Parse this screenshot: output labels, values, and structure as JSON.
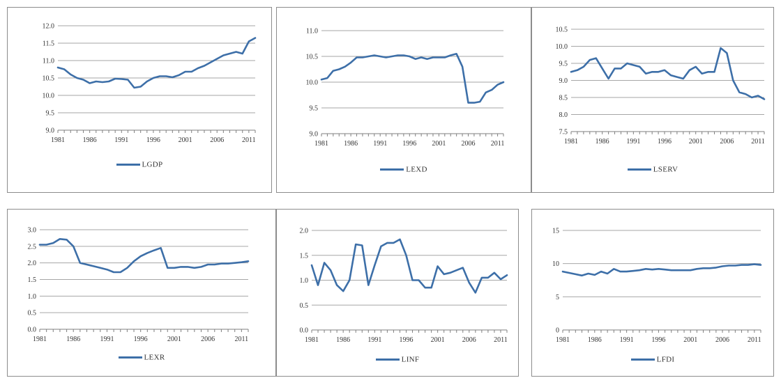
{
  "line_color": "#3d6fa8",
  "grid_color": "#a6a6a6",
  "chart_data": [
    {
      "type": "line",
      "title": "",
      "xlabel": "",
      "ylabel": "",
      "legend": "bottom",
      "grid": true,
      "ylim": [
        9.0,
        12.0
      ],
      "yticks": [
        "9.0",
        "9.5",
        "10.0",
        "10.5",
        "11.0",
        "11.5",
        "12.0"
      ],
      "xticks": [
        "1981",
        "1986",
        "1991",
        "1996",
        "2001",
        "2006",
        "2011"
      ],
      "x": [
        1981,
        1982,
        1983,
        1984,
        1985,
        1986,
        1987,
        1988,
        1989,
        1990,
        1991,
        1992,
        1993,
        1994,
        1995,
        1996,
        1997,
        1998,
        1999,
        2000,
        2001,
        2002,
        2003,
        2004,
        2005,
        2006,
        2007,
        2008,
        2009,
        2010,
        2011,
        2012
      ],
      "series": [
        {
          "name": "LGDP",
          "values": [
            10.8,
            10.75,
            10.6,
            10.5,
            10.45,
            10.35,
            10.4,
            10.38,
            10.4,
            10.48,
            10.47,
            10.45,
            10.22,
            10.25,
            10.4,
            10.5,
            10.55,
            10.55,
            10.52,
            10.58,
            10.68,
            10.68,
            10.78,
            10.85,
            10.95,
            11.05,
            11.15,
            11.2,
            11.25,
            11.2,
            11.55,
            11.65
          ]
        }
      ]
    },
    {
      "type": "line",
      "title": "",
      "xlabel": "",
      "ylabel": "",
      "legend": "bottom",
      "grid": true,
      "ylim": [
        9.0,
        11.0
      ],
      "yticks": [
        "9.0",
        "9.5",
        "10.0",
        "10.5",
        "11.0"
      ],
      "xticks": [
        "1981",
        "1986",
        "1991",
        "1996",
        "2001",
        "2006",
        "2011"
      ],
      "x": [
        1981,
        1982,
        1983,
        1984,
        1985,
        1986,
        1987,
        1988,
        1989,
        1990,
        1991,
        1992,
        1993,
        1994,
        1995,
        1996,
        1997,
        1998,
        1999,
        2000,
        2001,
        2002,
        2003,
        2004,
        2005,
        2006,
        2007,
        2008,
        2009,
        2010,
        2011,
        2012
      ],
      "series": [
        {
          "name": "LEXD",
          "values": [
            10.05,
            10.08,
            10.22,
            10.25,
            10.3,
            10.38,
            10.48,
            10.48,
            10.5,
            10.52,
            10.5,
            10.48,
            10.5,
            10.52,
            10.52,
            10.5,
            10.45,
            10.48,
            10.45,
            10.48,
            10.48,
            10.48,
            10.52,
            10.55,
            10.3,
            9.6,
            9.6,
            9.62,
            9.8,
            9.85,
            9.95,
            10.0
          ]
        }
      ]
    },
    {
      "type": "line",
      "title": "",
      "xlabel": "",
      "ylabel": "",
      "legend": "bottom",
      "grid": true,
      "ylim": [
        7.5,
        10.5
      ],
      "yticks": [
        "7.5",
        "8.0",
        "8.5",
        "9.0",
        "9.5",
        "10.0",
        "10.5"
      ],
      "xticks": [
        "1981",
        "1986",
        "1991",
        "1996",
        "2001",
        "2006",
        "2011"
      ],
      "x": [
        1981,
        1982,
        1983,
        1984,
        1985,
        1986,
        1987,
        1988,
        1989,
        1990,
        1991,
        1992,
        1993,
        1994,
        1995,
        1996,
        1997,
        1998,
        1999,
        2000,
        2001,
        2002,
        2003,
        2004,
        2005,
        2006,
        2007,
        2008,
        2009,
        2010,
        2011,
        2012
      ],
      "series": [
        {
          "name": "LSERV",
          "values": [
            9.25,
            9.3,
            9.4,
            9.6,
            9.65,
            9.35,
            9.05,
            9.35,
            9.35,
            9.5,
            9.45,
            9.4,
            9.2,
            9.25,
            9.25,
            9.3,
            9.15,
            9.1,
            9.05,
            9.3,
            9.4,
            9.2,
            9.25,
            9.25,
            9.95,
            9.8,
            9.0,
            8.65,
            8.6,
            8.5,
            8.55,
            8.45
          ]
        }
      ]
    },
    {
      "type": "line",
      "title": "",
      "xlabel": "",
      "ylabel": "",
      "legend": "bottom",
      "grid": true,
      "ylim": [
        0.0,
        3.0
      ],
      "yticks": [
        "0.0",
        "0.5",
        "1.0",
        "1.5",
        "2.0",
        "2.5",
        "3.0"
      ],
      "xticks": [
        "1981",
        "1986",
        "1991",
        "1996",
        "2001",
        "2006",
        "2011"
      ],
      "x": [
        1981,
        1982,
        1983,
        1984,
        1985,
        1986,
        1987,
        1988,
        1989,
        1990,
        1991,
        1992,
        1993,
        1994,
        1995,
        1996,
        1997,
        1998,
        1999,
        2000,
        2001,
        2002,
        2003,
        2004,
        2005,
        2006,
        2007,
        2008,
        2009,
        2010,
        2011,
        2012
      ],
      "series": [
        {
          "name": "LEXR",
          "values": [
            2.55,
            2.55,
            2.6,
            2.72,
            2.7,
            2.5,
            2.0,
            1.95,
            1.9,
            1.85,
            1.8,
            1.72,
            1.72,
            1.85,
            2.05,
            2.2,
            2.3,
            2.38,
            2.45,
            1.85,
            1.85,
            1.88,
            1.88,
            1.85,
            1.88,
            1.95,
            1.95,
            1.98,
            1.98,
            2.0,
            2.02,
            2.05
          ]
        }
      ]
    },
    {
      "type": "line",
      "title": "",
      "xlabel": "",
      "ylabel": "",
      "legend": "bottom",
      "grid": true,
      "ylim": [
        0.0,
        2.0
      ],
      "yticks": [
        "0.0",
        "0.5",
        "1.0",
        "1.5",
        "2.0"
      ],
      "xticks": [
        "1981",
        "1986",
        "1991",
        "1996",
        "2001",
        "2006",
        "2011"
      ],
      "x": [
        1981,
        1982,
        1983,
        1984,
        1985,
        1986,
        1987,
        1988,
        1989,
        1990,
        1991,
        1992,
        1993,
        1994,
        1995,
        1996,
        1997,
        1998,
        1999,
        2000,
        2001,
        2002,
        2003,
        2004,
        2005,
        2006,
        2007,
        2008,
        2009,
        2010,
        2011,
        2012
      ],
      "series": [
        {
          "name": "LINF",
          "values": [
            1.3,
            0.9,
            1.35,
            1.2,
            0.9,
            0.78,
            1.0,
            1.72,
            1.7,
            0.9,
            1.3,
            1.68,
            1.75,
            1.75,
            1.82,
            1.5,
            1.0,
            1.0,
            0.85,
            0.85,
            1.28,
            1.12,
            1.15,
            1.2,
            1.25,
            0.95,
            0.75,
            1.05,
            1.05,
            1.15,
            1.02,
            1.1
          ]
        }
      ]
    },
    {
      "type": "line",
      "title": "",
      "xlabel": "",
      "ylabel": "",
      "legend": "bottom",
      "grid": true,
      "ylim": [
        0,
        15
      ],
      "yticks": [
        "0",
        "5",
        "10",
        "15"
      ],
      "xticks": [
        "1981",
        "1986",
        "1991",
        "1996",
        "2001",
        "2006",
        "2011"
      ],
      "x": [
        1981,
        1982,
        1983,
        1984,
        1985,
        1986,
        1987,
        1988,
        1989,
        1990,
        1991,
        1992,
        1993,
        1994,
        1995,
        1996,
        1997,
        1998,
        1999,
        2000,
        2001,
        2002,
        2003,
        2004,
        2005,
        2006,
        2007,
        2008,
        2009,
        2010,
        2011,
        2012
      ],
      "series": [
        {
          "name": "LFDI",
          "values": [
            8.8,
            8.6,
            8.4,
            8.2,
            8.5,
            8.3,
            8.8,
            8.5,
            9.2,
            8.8,
            8.8,
            8.9,
            9.0,
            9.2,
            9.1,
            9.2,
            9.1,
            9.0,
            9.0,
            9.0,
            9.0,
            9.2,
            9.3,
            9.3,
            9.4,
            9.6,
            9.7,
            9.7,
            9.8,
            9.8,
            9.9,
            9.8
          ]
        }
      ]
    }
  ]
}
